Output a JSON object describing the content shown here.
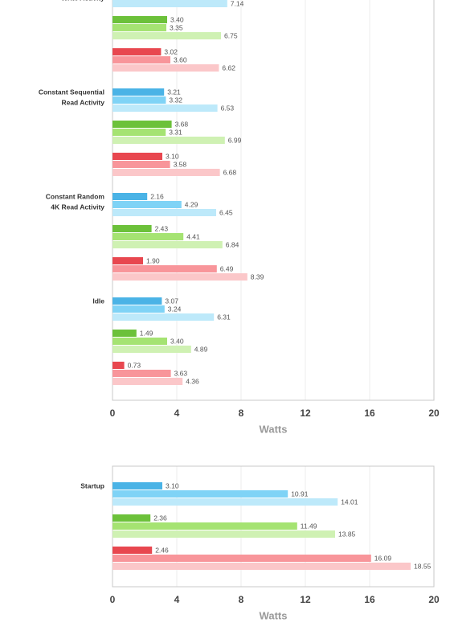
{
  "chart_data": [
    {
      "type": "bar",
      "orientation": "horizontal",
      "x_label": "Watts",
      "xlim": [
        0,
        20
      ],
      "xticks": [
        0,
        4,
        8,
        12,
        16,
        20
      ],
      "grid": true,
      "categories": [
        [
          "Write Activity"
        ],
        [
          "Constant Sequential",
          "Read Activity"
        ],
        [
          "Constant Random",
          "4K Read Activity"
        ],
        [
          "Idle"
        ]
      ],
      "series": [
        {
          "color": "#4ab3e6",
          "values": [
            null,
            3.21,
            2.16,
            3.07
          ],
          "value_labels": [
            null,
            "3.21",
            "2.16",
            "3.07"
          ]
        },
        {
          "color": "#7fd3f6",
          "values": [
            null,
            3.32,
            4.29,
            3.24
          ],
          "value_labels": [
            null,
            "3.32",
            "4.29",
            "3.24"
          ]
        },
        {
          "color": "#bde9fa",
          "values": [
            7.14,
            6.53,
            6.45,
            6.31
          ],
          "value_labels": [
            "7.14",
            "6.53",
            "6.45",
            "6.31"
          ]
        },
        {
          "color": "#6cc13a",
          "values": [
            3.4,
            3.68,
            2.43,
            1.49
          ],
          "value_labels": [
            "3.40",
            "3.68",
            "2.43",
            "1.49"
          ]
        },
        {
          "color": "#a5e372",
          "values": [
            3.35,
            3.31,
            4.41,
            3.4
          ],
          "value_labels": [
            "3.35",
            "3.31",
            "4.41",
            "3.40"
          ]
        },
        {
          "color": "#cff1b3",
          "values": [
            6.75,
            6.99,
            6.84,
            4.89
          ],
          "value_labels": [
            "6.75",
            "6.99",
            "6.84",
            "4.89"
          ]
        },
        {
          "color": "#e8474f",
          "values": [
            3.02,
            3.1,
            1.9,
            0.73
          ],
          "value_labels": [
            "3.02",
            "3.10",
            "1.90",
            "0.73"
          ]
        },
        {
          "color": "#f8959a",
          "values": [
            3.6,
            3.58,
            6.49,
            3.63
          ],
          "value_labels": [
            "3.60",
            "3.58",
            "6.49",
            "3.63"
          ]
        },
        {
          "color": "#fbc7c9",
          "values": [
            6.62,
            6.68,
            8.39,
            4.36
          ],
          "value_labels": [
            "6.62",
            "6.68",
            "8.39",
            "4.36"
          ]
        }
      ]
    },
    {
      "type": "bar",
      "orientation": "horizontal",
      "x_label": "Watts",
      "xlim": [
        0,
        20
      ],
      "xticks": [
        0,
        4,
        8,
        12,
        16,
        20
      ],
      "grid": true,
      "categories": [
        [
          "Startup"
        ]
      ],
      "series": [
        {
          "color": "#4ab3e6",
          "values": [
            3.1
          ],
          "value_labels": [
            "3.10"
          ]
        },
        {
          "color": "#7fd3f6",
          "values": [
            10.91
          ],
          "value_labels": [
            "10.91"
          ]
        },
        {
          "color": "#bde9fa",
          "values": [
            14.01
          ],
          "value_labels": [
            "14.01"
          ]
        },
        {
          "color": "#6cc13a",
          "values": [
            2.36
          ],
          "value_labels": [
            "2.36"
          ]
        },
        {
          "color": "#a5e372",
          "values": [
            11.49
          ],
          "value_labels": [
            "11.49"
          ]
        },
        {
          "color": "#cff1b3",
          "values": [
            13.85
          ],
          "value_labels": [
            "13.85"
          ]
        },
        {
          "color": "#e8474f",
          "values": [
            2.46
          ],
          "value_labels": [
            "2.46"
          ]
        },
        {
          "color": "#f8959a",
          "values": [
            16.09
          ],
          "value_labels": [
            "16.09"
          ]
        },
        {
          "color": "#fbc7c9",
          "values": [
            18.55
          ],
          "value_labels": [
            "18.55"
          ]
        }
      ]
    }
  ]
}
